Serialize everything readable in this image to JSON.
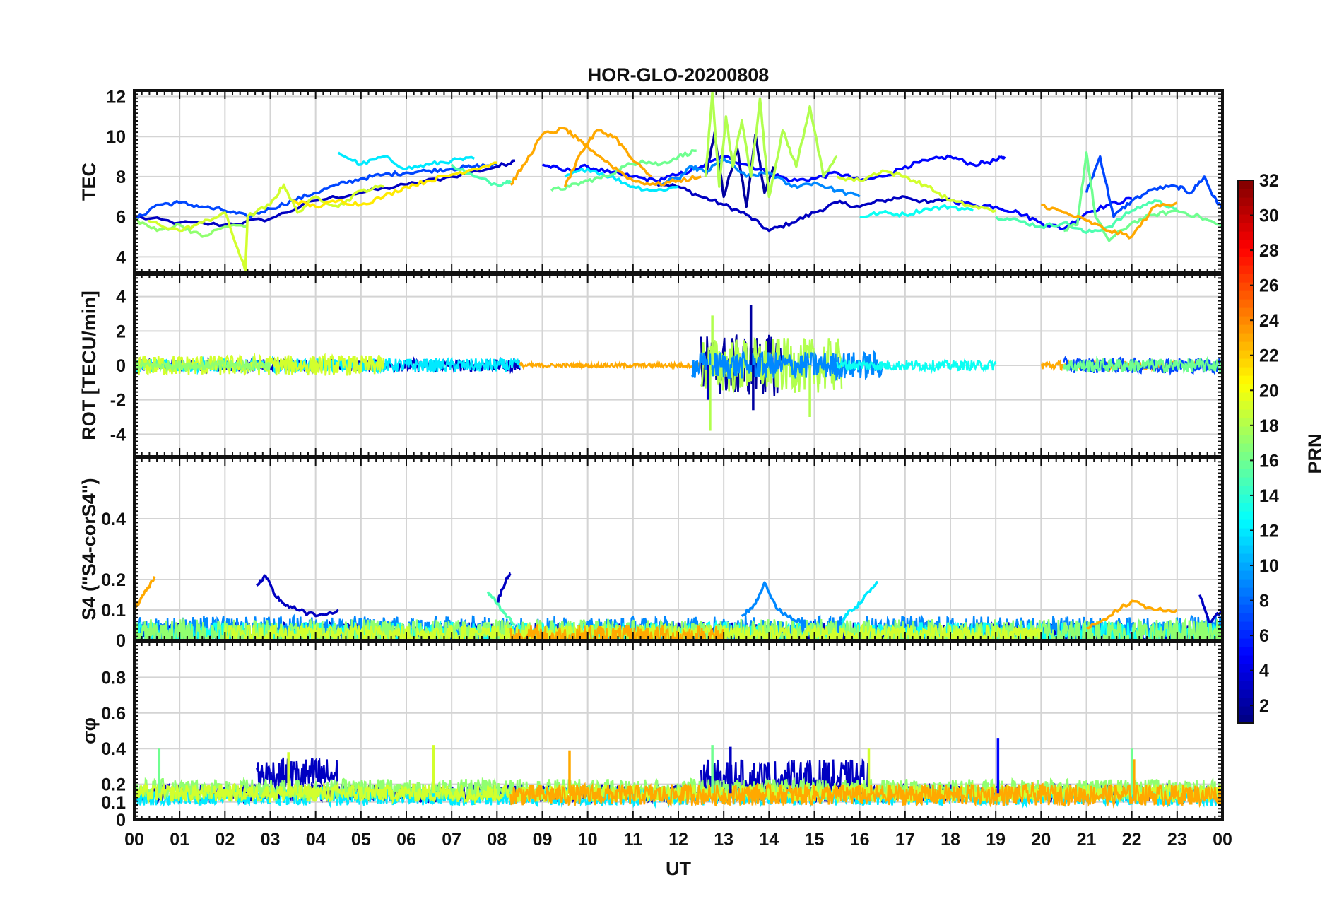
{
  "figure": {
    "title": "HOR-GLO-20200808",
    "xlabel": "UT",
    "x_ticks": [
      "00",
      "01",
      "02",
      "03",
      "04",
      "05",
      "06",
      "07",
      "08",
      "09",
      "10",
      "11",
      "12",
      "13",
      "14",
      "15",
      "16",
      "17",
      "18",
      "19",
      "20",
      "21",
      "22",
      "23",
      "00"
    ]
  },
  "colorbar": {
    "label": "PRN",
    "range": [
      1,
      32
    ],
    "ticks": [
      2,
      4,
      6,
      8,
      10,
      12,
      14,
      16,
      18,
      20,
      22,
      24,
      26,
      28,
      30,
      32
    ],
    "colormap": "jet"
  },
  "chart_data": [
    {
      "type": "line",
      "panel": "tec",
      "ylabel": "TEC",
      "ylim": [
        3.2,
        12.3
      ],
      "yticks": [
        4,
        6,
        8,
        10,
        12
      ],
      "xlim": [
        0,
        24
      ],
      "grid": true,
      "series": [
        {
          "prn": 3,
          "x": [
            0,
            1,
            2,
            3,
            4,
            5,
            6,
            7,
            8,
            8.4
          ],
          "y": [
            6.0,
            5.7,
            5.6,
            5.9,
            6.8,
            7.2,
            7.6,
            8.0,
            8.5,
            8.8
          ]
        },
        {
          "prn": 3,
          "x": [
            11.5,
            12,
            12.5,
            13,
            13.5,
            14,
            14.5,
            15,
            15.5,
            16,
            16.5,
            17,
            17.5,
            18
          ],
          "y": [
            7.7,
            7.5,
            7.0,
            6.6,
            6.1,
            5.3,
            5.7,
            6.2,
            6.7,
            6.5,
            6.8,
            7.0,
            6.7,
            6.9
          ]
        },
        {
          "prn": 2,
          "x": [
            12.6,
            12.8,
            13.0,
            13.3,
            13.5,
            13.7,
            13.9,
            14.1
          ],
          "y": [
            8.0,
            10.2,
            7.0,
            9.4,
            6.5,
            10.1,
            7.2,
            8.5
          ]
        },
        {
          "prn": 5,
          "x": [
            9,
            9.5,
            10,
            10.5,
            11,
            11.5,
            12,
            12.5,
            13,
            13.5,
            14,
            14.5,
            15,
            15.5,
            16,
            16.5,
            17,
            17.5,
            18,
            18.5,
            19,
            19.2
          ],
          "y": [
            8.6,
            8.3,
            8.5,
            8.2,
            8.0,
            7.8,
            8.1,
            8.5,
            9.0,
            8.6,
            8.2,
            7.8,
            7.9,
            8.2,
            7.8,
            8.0,
            8.5,
            8.8,
            9.0,
            8.6,
            8.8,
            9.0
          ]
        },
        {
          "prn": 5,
          "x": [
            18,
            18.5,
            19,
            19.5,
            20,
            20.5,
            21,
            21.5,
            22
          ],
          "y": [
            6.8,
            6.6,
            6.5,
            6.2,
            5.7,
            5.4,
            6.2,
            6.6,
            6.9
          ]
        },
        {
          "prn": 7,
          "x": [
            0,
            0.5,
            1,
            1.5,
            2,
            2.5,
            3,
            3.5,
            4,
            4.5,
            5,
            5.5,
            6,
            6.5,
            7,
            7.5,
            8
          ],
          "y": [
            5.8,
            6.6,
            6.7,
            6.5,
            6.3,
            6.0,
            6.4,
            6.8,
            7.2,
            7.6,
            7.9,
            8.1,
            8.2,
            8.3,
            8.4,
            8.5,
            8.6
          ]
        },
        {
          "prn": 7,
          "x": [
            21,
            21.3,
            21.6,
            22,
            22.5,
            23,
            23.3,
            23.6,
            23.8,
            24
          ],
          "y": [
            7.2,
            9.0,
            6.0,
            6.8,
            7.4,
            7.5,
            7.2,
            8.0,
            7.0,
            6.4
          ]
        },
        {
          "prn": 9,
          "x": [
            11.5,
            12,
            12.3,
            12.6,
            13,
            13.5,
            14,
            14.5,
            15,
            15.5,
            16
          ],
          "y": [
            7.6,
            7.9,
            8.5,
            8.2,
            8.9,
            8.0,
            8.2,
            7.5,
            7.7,
            7.3,
            7.0
          ]
        },
        {
          "prn": 12,
          "x": [
            4.5,
            5,
            5.5,
            6,
            6.5,
            7,
            7.5
          ],
          "y": [
            9.2,
            8.6,
            9.0,
            8.4,
            8.6,
            8.8,
            8.9
          ]
        },
        {
          "prn": 12,
          "x": [
            9.5,
            10,
            10.5,
            11,
            11.5,
            12
          ],
          "y": [
            8.0,
            8.4,
            8.0,
            7.5,
            7.3,
            7.5
          ]
        },
        {
          "prn": 13,
          "x": [
            16,
            16.5,
            17,
            17.5,
            18,
            18.5
          ],
          "y": [
            6.0,
            6.2,
            6.1,
            6.4,
            6.5,
            6.3
          ]
        },
        {
          "prn": 15,
          "x": [
            7,
            7.5,
            8,
            8.3
          ],
          "y": [
            8.6,
            8.0,
            7.6,
            7.8
          ]
        },
        {
          "prn": 15,
          "x": [
            19,
            19.5,
            20,
            20.5,
            21,
            21.5,
            22,
            22.5,
            23
          ],
          "y": [
            6.0,
            5.8,
            5.5,
            5.7,
            5.2,
            5.5,
            6.3,
            6.8,
            6.4
          ]
        },
        {
          "prn": 16,
          "x": [
            9.2,
            9.6,
            10,
            10.4,
            10.8,
            11.2,
            11.6,
            12,
            12.4
          ],
          "y": [
            7.3,
            7.5,
            7.8,
            8.0,
            8.5,
            8.8,
            8.6,
            9.0,
            9.3
          ]
        },
        {
          "prn": 16,
          "x": [
            20.5,
            20.8,
            21,
            21.2,
            21.5,
            22,
            22.5,
            23,
            23.5,
            24
          ],
          "y": [
            5.3,
            5.6,
            9.2,
            6.0,
            4.8,
            5.7,
            6.1,
            6.3,
            6.0,
            5.5
          ]
        },
        {
          "prn": 17,
          "x": [
            0,
            0.5,
            1,
            1.5,
            2,
            2.5
          ],
          "y": [
            5.9,
            5.3,
            5.6,
            5.0,
            5.5,
            5.6
          ]
        },
        {
          "prn": 18,
          "x": [
            12.6,
            12.75,
            12.9,
            13.05,
            13.2,
            13.4,
            13.6,
            13.8,
            14.0,
            14.3,
            14.6,
            14.9,
            15.2,
            15.5
          ],
          "y": [
            8.0,
            12.2,
            7.5,
            11.0,
            8.5,
            10.8,
            8.0,
            11.9,
            7.0,
            10.3,
            8.5,
            11.5,
            8.0,
            9.0
          ]
        },
        {
          "prn": 19,
          "x": [
            0.3,
            1,
            1.5,
            2,
            2.45,
            2.5,
            3,
            3.3,
            3.6,
            4,
            4.5,
            5,
            5.5
          ],
          "y": [
            5.8,
            5.3,
            5.7,
            6.2,
            3.3,
            6.0,
            6.6,
            7.6,
            6.2,
            7.0,
            6.5,
            7.3,
            7.5
          ]
        },
        {
          "prn": 19,
          "x": [
            15.5,
            16,
            16.5,
            17,
            17.5,
            18,
            18.5,
            19
          ],
          "y": [
            8.0,
            7.8,
            8.3,
            8.0,
            7.5,
            6.8,
            6.5,
            6.3
          ]
        },
        {
          "prn": 21,
          "x": [
            3.5,
            4,
            4.5,
            5,
            5.5,
            6,
            6.5,
            7,
            7.5,
            8
          ],
          "y": [
            6.8,
            6.5,
            6.8,
            6.6,
            7.0,
            7.5,
            7.8,
            8.1,
            8.4,
            8.7
          ]
        },
        {
          "prn": 23,
          "x": [
            8.3,
            8.6,
            9,
            9.5,
            9.8,
            10,
            10.5,
            11,
            11.5,
            12,
            12.5
          ],
          "y": [
            7.6,
            8.6,
            10.1,
            10.4,
            9.8,
            9.5,
            8.6,
            7.8,
            7.6,
            7.8,
            8.0
          ]
        },
        {
          "prn": 23,
          "x": [
            9.5,
            9.8,
            10.2,
            10.6,
            11,
            11.4
          ],
          "y": [
            7.5,
            9.0,
            10.3,
            10.0,
            8.8,
            8.0
          ]
        },
        {
          "prn": 23,
          "x": [
            20,
            20.5,
            21,
            21.5,
            22,
            22.5,
            23
          ],
          "y": [
            6.6,
            6.2,
            5.8,
            5.3,
            5.0,
            6.5,
            6.7
          ]
        }
      ]
    },
    {
      "type": "line",
      "panel": "rot",
      "ylabel": "ROT [TECU/min]",
      "ylim": [
        -5.3,
        5.3
      ],
      "yticks": [
        -4,
        -2,
        0,
        2,
        4
      ],
      "xlim": [
        0,
        24
      ],
      "grid": true,
      "noise_bands": [
        {
          "prn": 3,
          "x0": 0,
          "x1": 8.5,
          "amp": 0.35
        },
        {
          "prn": 12,
          "x0": 0,
          "x1": 8.5,
          "amp": 0.4
        },
        {
          "prn": 19,
          "x0": 0,
          "x1": 5.5,
          "amp": 0.6
        },
        {
          "prn": 17,
          "x0": 0,
          "x1": 3,
          "amp": 0.3
        },
        {
          "prn": 23,
          "x0": 8.5,
          "x1": 12.5,
          "amp": 0.12
        },
        {
          "prn": 2,
          "x0": 12.5,
          "x1": 14.3,
          "amp": 1.8
        },
        {
          "prn": 18,
          "x0": 12.5,
          "x1": 15.6,
          "amp": 1.6
        },
        {
          "prn": 9,
          "x0": 12.3,
          "x1": 16.5,
          "amp": 0.8
        },
        {
          "prn": 13,
          "x0": 15.5,
          "x1": 19,
          "amp": 0.3
        },
        {
          "prn": 23,
          "x0": 20,
          "x1": 23.5,
          "amp": 0.25
        },
        {
          "prn": 7,
          "x0": 20.5,
          "x1": 24,
          "amp": 0.45
        },
        {
          "prn": 16,
          "x0": 20.5,
          "x1": 24,
          "amp": 0.4
        }
      ],
      "spikes": [
        {
          "prn": 2,
          "x": 13.6,
          "y": 3.5
        },
        {
          "prn": 2,
          "x": 13.65,
          "y": -2.6
        },
        {
          "prn": 18,
          "x": 12.7,
          "y": -3.8
        },
        {
          "prn": 18,
          "x": 14.9,
          "y": -3.0
        },
        {
          "prn": 3,
          "x": 12.65,
          "y": -2.0
        },
        {
          "prn": 18,
          "x": 12.75,
          "y": 2.9
        }
      ]
    },
    {
      "type": "line",
      "panel": "s4",
      "ylabel": "S4 (\"S4-corS4\")",
      "ylim": [
        0,
        0.6
      ],
      "yticks": [
        0,
        0.1,
        0.2,
        0.4
      ],
      "xlim": [
        0,
        24
      ],
      "grid": true,
      "series": [
        {
          "prn": 23,
          "x": [
            0,
            0.15,
            0.3,
            0.45
          ],
          "y": [
            0.1,
            0.14,
            0.17,
            0.21
          ]
        },
        {
          "prn": 3,
          "x": [
            2.7,
            2.9,
            3.1,
            3.3,
            3.6,
            4,
            4.5
          ],
          "y": [
            0.18,
            0.21,
            0.15,
            0.12,
            0.1,
            0.08,
            0.1
          ]
        },
        {
          "prn": 3,
          "x": [
            8,
            8.2,
            8.3
          ],
          "y": [
            0.12,
            0.2,
            0.22
          ]
        },
        {
          "prn": 15,
          "x": [
            7.8,
            8,
            8.2,
            8.4
          ],
          "y": [
            0.16,
            0.12,
            0.08,
            0.05
          ]
        },
        {
          "prn": 12,
          "x": [
            15.6,
            15.8,
            16.0,
            16.2,
            16.4
          ],
          "y": [
            0.06,
            0.1,
            0.12,
            0.16,
            0.19
          ]
        },
        {
          "prn": 9,
          "x": [
            13.4,
            13.7,
            13.9,
            14.2,
            14.5,
            14.8
          ],
          "y": [
            0.08,
            0.12,
            0.19,
            0.1,
            0.07,
            0.06
          ]
        },
        {
          "prn": 23,
          "x": [
            21,
            21.5,
            22,
            22.5,
            23
          ],
          "y": [
            0.04,
            0.08,
            0.13,
            0.1,
            0.1
          ]
        },
        {
          "prn": 3,
          "x": [
            23.5,
            23.7,
            24
          ],
          "y": [
            0.15,
            0.06,
            0.1
          ]
        }
      ],
      "noise_bands": [
        {
          "prn": 3,
          "x0": 0,
          "x1": 24,
          "base": 0.02,
          "amp": 0.04
        },
        {
          "prn": 9,
          "x0": 0,
          "x1": 24,
          "base": 0.03,
          "amp": 0.05
        },
        {
          "prn": 13,
          "x0": 0,
          "x1": 24,
          "base": 0.02,
          "amp": 0.04
        },
        {
          "prn": 17,
          "x0": 0,
          "x1": 24,
          "base": 0.02,
          "amp": 0.05
        },
        {
          "prn": 19,
          "x0": 2,
          "x1": 20,
          "base": 0.02,
          "amp": 0.03
        },
        {
          "prn": 23,
          "x0": 8.3,
          "x1": 13,
          "base": 0.01,
          "amp": 0.04
        }
      ]
    },
    {
      "type": "line",
      "panel": "sigma_phi",
      "ylabel": "σφ",
      "ylim": [
        0,
        1
      ],
      "yticks": [
        0,
        0.1,
        0.2,
        0.4,
        0.6,
        0.8
      ],
      "xlim": [
        0,
        24
      ],
      "grid": true,
      "noise_bands": [
        {
          "prn": 3,
          "x0": 2.7,
          "x1": 4.5,
          "base": 0.25,
          "amp": 0.1
        },
        {
          "prn": 3,
          "x0": 12.5,
          "x1": 16.2,
          "base": 0.22,
          "amp": 0.12
        },
        {
          "prn": 3,
          "x0": 0,
          "x1": 24,
          "base": 0.15,
          "amp": 0.05
        },
        {
          "prn": 12,
          "x0": 0,
          "x1": 24,
          "base": 0.13,
          "amp": 0.05
        },
        {
          "prn": 17,
          "x0": 0,
          "x1": 24,
          "base": 0.17,
          "amp": 0.06
        },
        {
          "prn": 19,
          "x0": 0,
          "x1": 24,
          "base": 0.15,
          "amp": 0.05
        },
        {
          "prn": 23,
          "x0": 8.3,
          "x1": 24,
          "base": 0.14,
          "amp": 0.06
        }
      ],
      "spikes": [
        {
          "prn": 16,
          "x": 0.55,
          "y": 0.4
        },
        {
          "prn": 19,
          "x": 3.4,
          "y": 0.38
        },
        {
          "prn": 19,
          "x": 6.6,
          "y": 0.42
        },
        {
          "prn": 23,
          "x": 9.6,
          "y": 0.39
        },
        {
          "prn": 16,
          "x": 12.75,
          "y": 0.42
        },
        {
          "prn": 3,
          "x": 13.15,
          "y": 0.41
        },
        {
          "prn": 19,
          "x": 16.2,
          "y": 0.4
        },
        {
          "prn": 5,
          "x": 19.05,
          "y": 0.46
        },
        {
          "prn": 16,
          "x": 22,
          "y": 0.4
        },
        {
          "prn": 23,
          "x": 22.05,
          "y": 0.34
        }
      ]
    }
  ]
}
